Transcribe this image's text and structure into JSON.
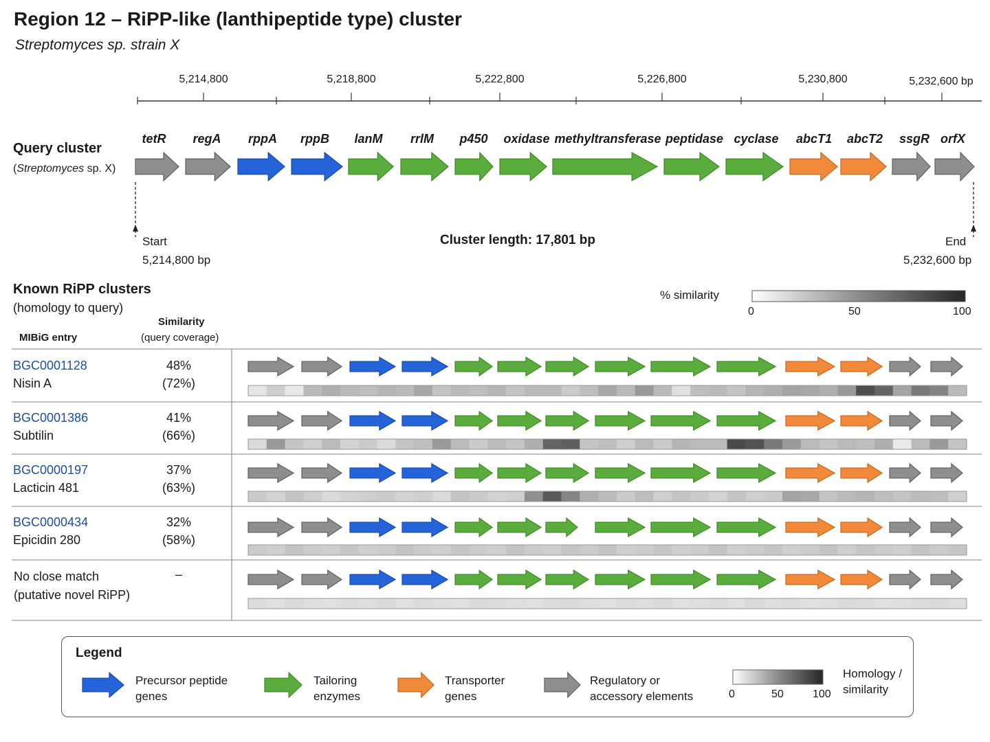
{
  "title": "Region 12 – RiPP-like (lanthipeptide type) cluster",
  "subtitle": "Streptomyces sp. strain X",
  "ruler": {
    "ticks": [
      "5,214,800",
      "5,218,800",
      "5,222,800",
      "5,226,800",
      "5,230,800"
    ],
    "end_tick": "5,232,600 bp"
  },
  "query": {
    "label": "Query cluster",
    "sublabel_prefix": "(",
    "sublabel_italic": "Streptomyces",
    "sublabel_suffix": " sp. X)",
    "genes": [
      {
        "name": "tetR",
        "class": "regulatory"
      },
      {
        "name": "regA",
        "class": "regulatory"
      },
      {
        "name": "rppA",
        "class": "precursor"
      },
      {
        "name": "rppB",
        "class": "precursor"
      },
      {
        "name": "lanM",
        "class": "tailoring"
      },
      {
        "name": "rrlM",
        "class": "tailoring"
      },
      {
        "name": "p450",
        "class": "tailoring"
      },
      {
        "name": "oxidase",
        "class": "tailoring"
      },
      {
        "name": "methyltransferase",
        "class": "tailoring"
      },
      {
        "name": "peptidase",
        "class": "tailoring"
      },
      {
        "name": "cyclase",
        "class": "tailoring"
      },
      {
        "name": "abcT1",
        "class": "transporter"
      },
      {
        "name": "abcT2",
        "class": "transporter"
      },
      {
        "name": "ssgR",
        "class": "regulatory"
      },
      {
        "name": "orfX",
        "class": "regulatory"
      }
    ],
    "start_label": "Start",
    "start_pos": "5,214,800 bp",
    "end_label": "End",
    "end_pos": "5,232,600 bp",
    "length_label": "Cluster length: 17,801 bp"
  },
  "known": {
    "title": "Known RiPP clusters",
    "subtitle": "(homology to query)",
    "col_entry": "MIBiG entry",
    "col_similarity": "Similarity",
    "col_similarity_sub": "(query coverage)",
    "similarity_label": "% similarity",
    "scale": [
      "0",
      "50",
      "100"
    ],
    "rows": [
      {
        "id": "BGC0001128",
        "name": "Nisin A",
        "similarity": "48%",
        "coverage": "(72%)",
        "heat": [
          10,
          20,
          8,
          30,
          35,
          30,
          28,
          32,
          30,
          38,
          25,
          30,
          28,
          32,
          25,
          30,
          30,
          22,
          28,
          38,
          30,
          45,
          30,
          12,
          28,
          30,
          25,
          32,
          35,
          40,
          38,
          35,
          45,
          80,
          70,
          40,
          60,
          55,
          30
        ]
      },
      {
        "id": "BGC0001386",
        "name": "Subtilin",
        "similarity": "41%",
        "coverage": "(66%)",
        "heat": [
          15,
          45,
          25,
          20,
          30,
          18,
          22,
          15,
          25,
          28,
          45,
          30,
          22,
          30,
          25,
          35,
          70,
          72,
          25,
          28,
          20,
          30,
          22,
          32,
          30,
          30,
          82,
          78,
          60,
          45,
          30,
          25,
          30,
          28,
          35,
          8,
          30,
          45,
          25
        ]
      },
      {
        "id": "BGC0000197",
        "name": "Lacticin 481",
        "similarity": "37%",
        "coverage": "(63%)",
        "heat": [
          22,
          18,
          25,
          20,
          15,
          18,
          20,
          22,
          18,
          20,
          15,
          25,
          22,
          18,
          20,
          50,
          75,
          55,
          35,
          30,
          22,
          28,
          20,
          25,
          22,
          18,
          25,
          20,
          22,
          40,
          38,
          25,
          30,
          32,
          28,
          25,
          30,
          28,
          20
        ]
      },
      {
        "id": "BGC0000434",
        "name": "Epicidin 280",
        "similarity": "32%",
        "coverage": "(58%)",
        "heat": [
          22,
          20,
          25,
          22,
          20,
          24,
          20,
          22,
          25,
          22,
          20,
          24,
          22,
          20,
          25,
          22,
          20,
          24,
          22,
          25,
          20,
          22,
          24,
          20,
          22,
          25,
          20,
          22,
          24,
          20,
          22,
          25,
          20,
          24,
          22,
          20,
          25,
          22,
          24
        ]
      },
      {
        "id": "",
        "name": "No close match",
        "name2": "(putative novel RiPP)",
        "similarity": "–",
        "coverage": "",
        "heat": [
          14,
          12,
          15,
          13,
          12,
          14,
          13,
          15,
          12,
          14,
          13,
          12,
          15,
          14,
          13,
          12,
          14,
          15,
          13,
          12,
          14,
          13,
          15,
          12,
          13,
          14,
          12,
          15,
          13,
          14,
          12,
          13,
          15,
          14,
          12,
          13,
          14,
          15,
          13
        ]
      }
    ]
  },
  "legend": {
    "title": "Legend",
    "items": [
      {
        "line1": "Precursor peptide",
        "line2": "genes",
        "class": "precursor"
      },
      {
        "line1": "Tailoring",
        "line2": "enzymes",
        "class": "tailoring"
      },
      {
        "line1": "Transporter",
        "line2": "genes",
        "class": "transporter"
      },
      {
        "line1": "Regulatory or",
        "line2": "accessory elements",
        "class": "regulatory"
      }
    ],
    "scale": [
      "0",
      "50",
      "100"
    ],
    "homology_line1": "Homology /",
    "homology_line2": "similarity"
  },
  "colors": {
    "precursor": "#2563d9",
    "tailoring": "#5aad3c",
    "transporter": "#f0893a",
    "regulatory": "#8e8e8e"
  }
}
